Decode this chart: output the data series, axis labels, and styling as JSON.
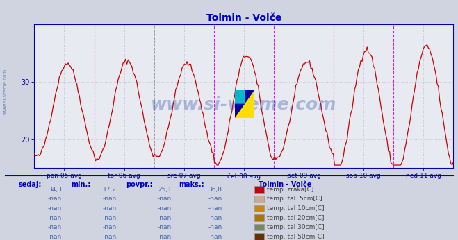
{
  "title": "Tolmin - Volče",
  "title_color": "#0000cc",
  "bg_color": "#d0d4e0",
  "plot_bg_color": "#e8eaf2",
  "grid_color": "#bbbbcc",
  "line_color": "#cc0000",
  "hline_color": "#cc0000",
  "hline_value": 25.1,
  "vline_magenta": "#dd00dd",
  "vline_gray": "#888888",
  "axis_color": "#0000aa",
  "spine_color": "#0000bb",
  "ymin": 15,
  "ymax": 40,
  "yticks": [
    20,
    30
  ],
  "x_tick_labels": [
    "pon 05 avg",
    "tor 06 avg",
    "sre 07 avg",
    "čet 08 avg",
    "pet 09 avg",
    "sob 10 avg",
    "ned 11 avg"
  ],
  "watermark": "www.si-vreme.com",
  "watermark_color": "#3355aa",
  "watermark_alpha": 0.35,
  "sidebar_text": "www.si-vreme.com",
  "sidebar_color": "#4466aa",
  "table_headers": [
    "sedaj:",
    "min.:",
    "povpr.:",
    "maks.:"
  ],
  "table_header_color": "#0000cc",
  "table_value_color": "#4466aa",
  "table_rows": [
    [
      "34,3",
      "17,2",
      "25,1",
      "36,8",
      "#cc0000",
      "temp. zraka[C]"
    ],
    [
      "-nan",
      "-nan",
      "-nan",
      "-nan",
      "#ccaa99",
      "temp. tal  5cm[C]"
    ],
    [
      "-nan",
      "-nan",
      "-nan",
      "-nan",
      "#cc8800",
      "temp. tal 10cm[C]"
    ],
    [
      "-nan",
      "-nan",
      "-nan",
      "-nan",
      "#aa7700",
      "temp. tal 20cm[C]"
    ],
    [
      "-nan",
      "-nan",
      "-nan",
      "-nan",
      "#778866",
      "temp. tal 30cm[C]"
    ],
    [
      "-nan",
      "-nan",
      "-nan",
      "-nan",
      "#663300",
      "temp. tal 50cm[C]"
    ]
  ],
  "legend_title": "Tolmin - Volče",
  "legend_title_color": "#0000cc",
  "num_points": 336,
  "logo": {
    "blue": "#0000aa",
    "yellow": "#ffdd00",
    "cyan": "#00bbcc"
  }
}
